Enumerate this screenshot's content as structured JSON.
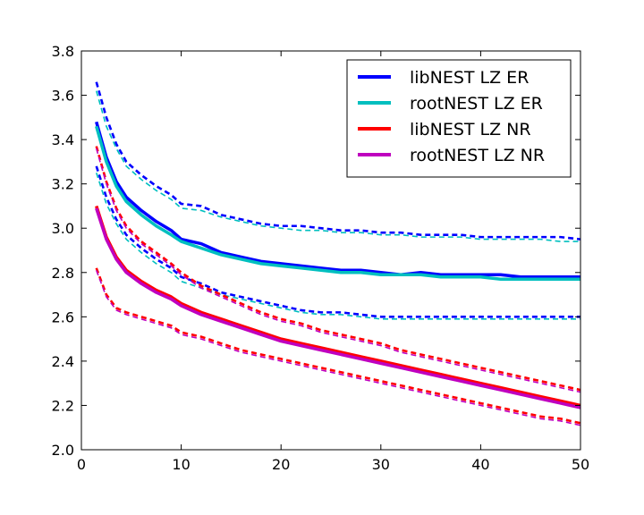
{
  "chart_data": {
    "type": "line",
    "title": "",
    "xlabel": "",
    "ylabel": "",
    "xlim": [
      0,
      50
    ],
    "ylim": [
      2.0,
      3.8
    ],
    "grid": false,
    "legend_placement": "top-right",
    "xticks": [
      0,
      10,
      20,
      30,
      40,
      50
    ],
    "xtick_labels": [
      "0",
      "10",
      "20",
      "30",
      "40",
      "50"
    ],
    "yticks": [
      2.0,
      2.2,
      2.4,
      2.6,
      2.8,
      3.0,
      3.2,
      3.4,
      3.6,
      3.8
    ],
    "ytick_labels": [
      "2.0",
      "2.2",
      "2.4",
      "2.6",
      "2.8",
      "3.0",
      "3.2",
      "3.4",
      "3.6",
      "3.8"
    ],
    "x": [
      1.5,
      2.5,
      3.5,
      4.5,
      6,
      7.5,
      9,
      10,
      12,
      14,
      16,
      18,
      20,
      22,
      24,
      26,
      28,
      30,
      32,
      34,
      36,
      38,
      40,
      42,
      44,
      46,
      48,
      50
    ],
    "series": [
      {
        "name": "libNEST LZ ER",
        "color": "#0000ff",
        "style": "solid",
        "width": "thick",
        "values": [
          3.48,
          3.32,
          3.21,
          3.14,
          3.08,
          3.03,
          2.99,
          2.95,
          2.93,
          2.89,
          2.87,
          2.85,
          2.84,
          2.83,
          2.82,
          2.81,
          2.81,
          2.8,
          2.79,
          2.8,
          2.79,
          2.79,
          2.79,
          2.79,
          2.78,
          2.78,
          2.78,
          2.78
        ]
      },
      {
        "name": "rootNEST LZ ER",
        "color": "#00bfbf",
        "style": "solid",
        "width": "thick",
        "values": [
          3.46,
          3.3,
          3.19,
          3.12,
          3.06,
          3.01,
          2.97,
          2.94,
          2.91,
          2.88,
          2.86,
          2.84,
          2.83,
          2.82,
          2.81,
          2.8,
          2.8,
          2.79,
          2.79,
          2.79,
          2.78,
          2.78,
          2.78,
          2.77,
          2.77,
          2.77,
          2.77,
          2.77
        ]
      },
      {
        "name": "libNEST LZ NR",
        "color": "#ff0000",
        "style": "solid",
        "width": "thick",
        "values": [
          3.1,
          2.96,
          2.87,
          2.81,
          2.76,
          2.72,
          2.69,
          2.66,
          2.62,
          2.59,
          2.56,
          2.53,
          2.5,
          2.48,
          2.46,
          2.44,
          2.42,
          2.4,
          2.38,
          2.36,
          2.34,
          2.32,
          2.3,
          2.28,
          2.26,
          2.24,
          2.22,
          2.2
        ]
      },
      {
        "name": "rootNEST LZ NR",
        "color": "#bf00bf",
        "style": "solid",
        "width": "thick",
        "values": [
          3.09,
          2.95,
          2.86,
          2.8,
          2.75,
          2.71,
          2.68,
          2.65,
          2.61,
          2.58,
          2.55,
          2.52,
          2.49,
          2.47,
          2.45,
          2.43,
          2.41,
          2.39,
          2.37,
          2.35,
          2.33,
          2.31,
          2.29,
          2.27,
          2.25,
          2.23,
          2.21,
          2.19
        ]
      },
      {
        "color": "#0000ff",
        "style": "dashed",
        "width": "medium",
        "values": [
          3.66,
          3.5,
          3.38,
          3.3,
          3.24,
          3.19,
          3.15,
          3.11,
          3.1,
          3.06,
          3.04,
          3.02,
          3.01,
          3.01,
          3.0,
          2.99,
          2.99,
          2.98,
          2.98,
          2.97,
          2.97,
          2.97,
          2.96,
          2.96,
          2.96,
          2.96,
          2.96,
          2.95
        ]
      },
      {
        "color": "#00bfbf",
        "style": "dashed",
        "width": "thin",
        "values": [
          3.62,
          3.46,
          3.36,
          3.28,
          3.22,
          3.17,
          3.13,
          3.09,
          3.08,
          3.05,
          3.03,
          3.01,
          3.0,
          2.99,
          2.99,
          2.98,
          2.98,
          2.97,
          2.97,
          2.96,
          2.96,
          2.96,
          2.95,
          2.95,
          2.95,
          2.95,
          2.94,
          2.94
        ]
      },
      {
        "color": "#0000ff",
        "style": "dashed",
        "width": "medium",
        "values": [
          3.28,
          3.14,
          3.04,
          2.97,
          2.91,
          2.86,
          2.82,
          2.78,
          2.75,
          2.71,
          2.69,
          2.67,
          2.65,
          2.63,
          2.62,
          2.62,
          2.61,
          2.6,
          2.6,
          2.6,
          2.6,
          2.6,
          2.6,
          2.6,
          2.6,
          2.6,
          2.6,
          2.6
        ]
      },
      {
        "color": "#00bfbf",
        "style": "dashed",
        "width": "thin",
        "values": [
          3.25,
          3.11,
          3.02,
          2.95,
          2.89,
          2.84,
          2.8,
          2.76,
          2.73,
          2.7,
          2.68,
          2.66,
          2.64,
          2.62,
          2.61,
          2.61,
          2.6,
          2.59,
          2.59,
          2.59,
          2.59,
          2.59,
          2.59,
          2.59,
          2.59,
          2.59,
          2.59,
          2.59
        ]
      },
      {
        "color": "#ff0000",
        "style": "dashed",
        "width": "medium",
        "values": [
          3.37,
          3.21,
          3.09,
          3.01,
          2.94,
          2.89,
          2.84,
          2.8,
          2.74,
          2.7,
          2.66,
          2.62,
          2.59,
          2.57,
          2.54,
          2.52,
          2.5,
          2.48,
          2.45,
          2.43,
          2.41,
          2.39,
          2.37,
          2.35,
          2.33,
          2.31,
          2.29,
          2.27
        ]
      },
      {
        "color": "#bf00bf",
        "style": "dashed",
        "width": "thin",
        "values": [
          3.36,
          3.2,
          3.08,
          3.0,
          2.93,
          2.88,
          2.83,
          2.79,
          2.73,
          2.69,
          2.65,
          2.61,
          2.58,
          2.56,
          2.53,
          2.51,
          2.49,
          2.47,
          2.44,
          2.42,
          2.4,
          2.38,
          2.36,
          2.34,
          2.32,
          2.3,
          2.28,
          2.26
        ]
      },
      {
        "color": "#ff0000",
        "style": "dashed",
        "width": "medium",
        "values": [
          2.82,
          2.7,
          2.64,
          2.62,
          2.6,
          2.58,
          2.56,
          2.53,
          2.51,
          2.48,
          2.45,
          2.43,
          2.41,
          2.39,
          2.37,
          2.35,
          2.33,
          2.31,
          2.29,
          2.27,
          2.25,
          2.23,
          2.21,
          2.19,
          2.17,
          2.15,
          2.14,
          2.12
        ]
      },
      {
        "color": "#bf00bf",
        "style": "dashed",
        "width": "thin",
        "values": [
          2.81,
          2.69,
          2.63,
          2.61,
          2.59,
          2.57,
          2.55,
          2.52,
          2.5,
          2.47,
          2.44,
          2.42,
          2.4,
          2.38,
          2.36,
          2.34,
          2.32,
          2.3,
          2.28,
          2.26,
          2.24,
          2.22,
          2.2,
          2.18,
          2.16,
          2.14,
          2.13,
          2.11
        ]
      }
    ]
  }
}
